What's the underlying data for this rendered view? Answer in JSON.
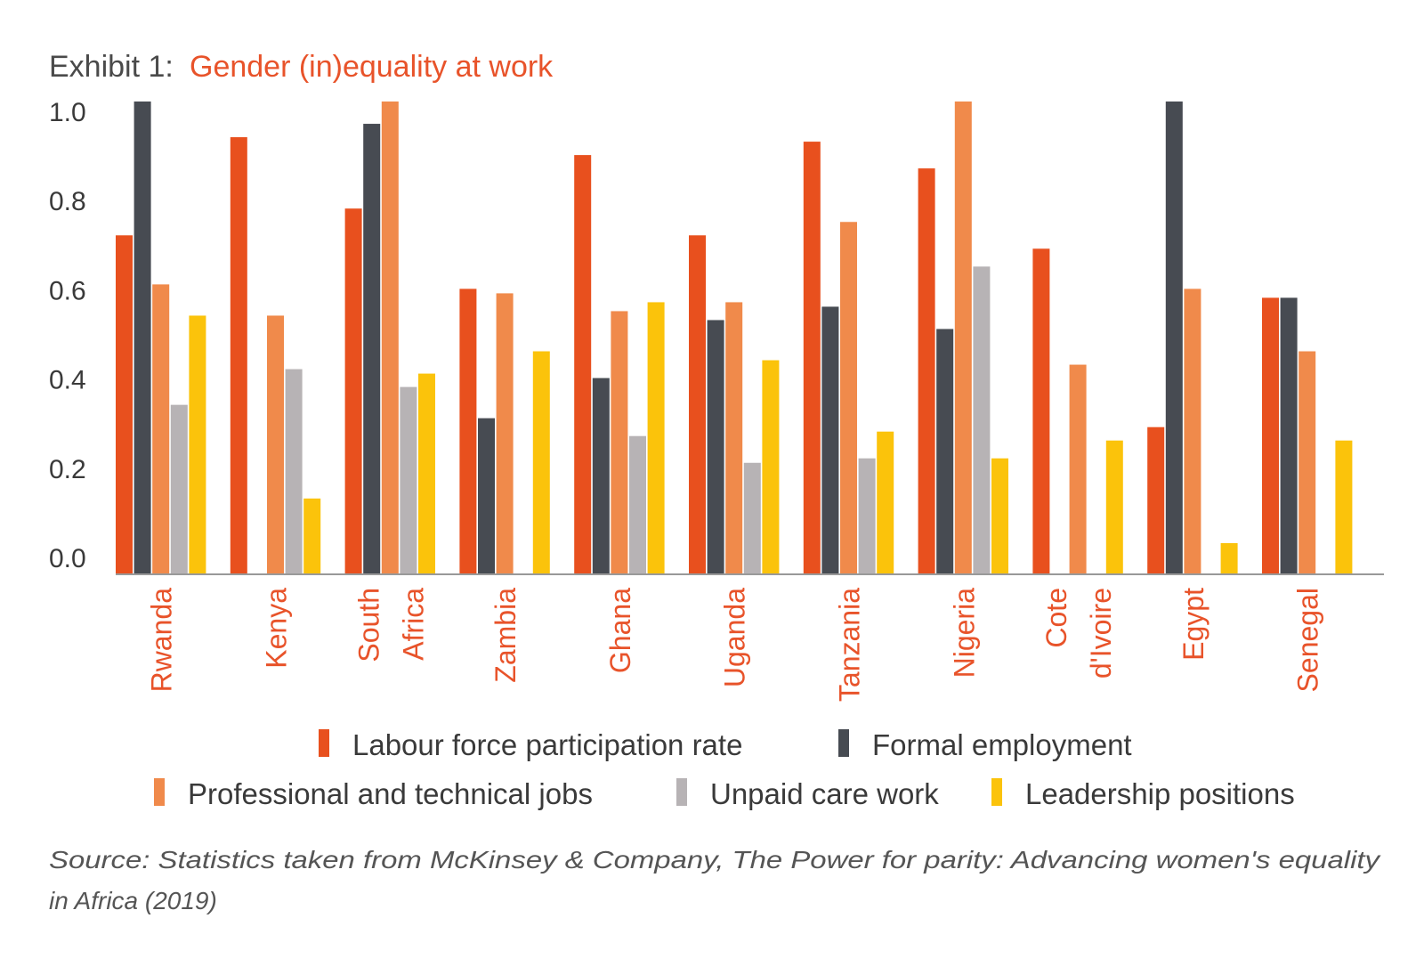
{
  "title": {
    "prefix": "Exhibit 1:",
    "main": "Gender (in)equality at work"
  },
  "source": {
    "line1": "Source: Statistics taken from McKinsey & Company, The Power for parity: Advancing women's equality",
    "line2": "in Africa (2019)"
  },
  "colors": {
    "title_accent": "#e8532a",
    "category_label": "#e8532a",
    "axis": "#999999"
  },
  "chart_data": {
    "type": "bar",
    "orientation": "vertical",
    "categories": [
      "Rwanda",
      "Kenya",
      "South Africa",
      "Zambia",
      "Ghana",
      "Uganda",
      "Tanzania",
      "Nigeria",
      "Cote d'Ivoire",
      "Egypt",
      "Senegal"
    ],
    "category_lines": [
      [
        "Rwanda"
      ],
      [
        "Kenya"
      ],
      [
        "South",
        "Africa"
      ],
      [
        "Zambia"
      ],
      [
        "Ghana"
      ],
      [
        "Uganda"
      ],
      [
        "Tanzania"
      ],
      [
        "Nigeria"
      ],
      [
        "Cote",
        "d'Ivoire"
      ],
      [
        "Egypt"
      ],
      [
        "Senegal"
      ]
    ],
    "series": [
      {
        "name": "Labour force participation rate",
        "color": "#e8501e",
        "values": [
          0.76,
          0.98,
          0.82,
          0.64,
          0.94,
          0.76,
          0.97,
          0.91,
          0.73,
          0.33,
          0.62
        ]
      },
      {
        "name": "Formal employment",
        "color": "#474b52",
        "values": [
          1.06,
          0,
          1.01,
          0.35,
          0.44,
          0.57,
          0.6,
          0.55,
          0,
          1.06,
          0.62
        ]
      },
      {
        "name": "Professional and technical jobs",
        "color": "#f08a4b",
        "values": [
          0.65,
          0.58,
          1.06,
          0.63,
          0.59,
          0.61,
          0.79,
          1.06,
          0.47,
          0.64,
          0.5
        ]
      },
      {
        "name": "Unpaid care work",
        "color": "#b7b3b5",
        "values": [
          0.38,
          0.46,
          0.42,
          0,
          0.31,
          0.25,
          0.26,
          0.69,
          0,
          0,
          0
        ]
      },
      {
        "name": "Leadership positions",
        "color": "#fbc30b",
        "values": [
          0.58,
          0.17,
          0.45,
          0.5,
          0.61,
          0.48,
          0.32,
          0.26,
          0.3,
          0.07,
          0.3
        ]
      }
    ],
    "yticks": [
      "0.0",
      "0.2",
      "0.4",
      "0.6",
      "0.8",
      "1.0"
    ],
    "ylim": [
      0,
      1.06
    ],
    "xlabel": "",
    "ylabel": "",
    "legend_position": "bottom",
    "grid": false
  }
}
